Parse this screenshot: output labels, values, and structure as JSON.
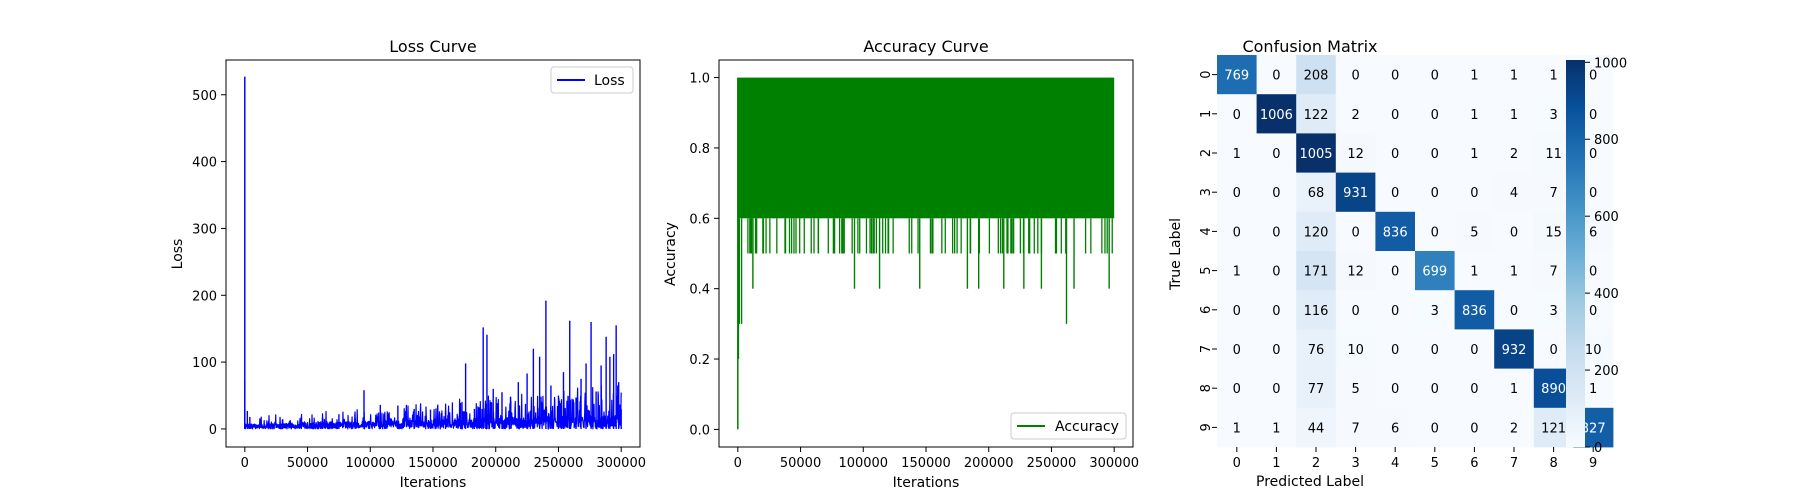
{
  "chart_data": [
    {
      "type": "line",
      "title": "Loss Curve",
      "xlabel": "Iterations",
      "ylabel": "Loss",
      "xlim": [
        -15000,
        315000
      ],
      "ylim": [
        -27,
        552
      ],
      "xticks": [
        0,
        50000,
        100000,
        150000,
        200000,
        250000,
        300000
      ],
      "xtick_labels": [
        "0",
        "50000",
        "100000",
        "150000",
        "200000",
        "250000",
        "300000"
      ],
      "yticks": [
        0,
        100,
        200,
        300,
        400,
        500
      ],
      "ytick_labels": [
        "0",
        "100",
        "200",
        "300",
        "400",
        "500"
      ],
      "legend": {
        "position": "top-right",
        "entries": [
          {
            "label": "Loss",
            "color": "#0000ff"
          }
        ]
      },
      "series": [
        {
          "name": "Loss",
          "color": "#0000ff",
          "x_range": [
            0,
            300000
          ],
          "initial_spike": {
            "x": 0,
            "y": 527
          },
          "baseline_band": [
            0,
            9
          ],
          "spikes": [
            {
              "x": 0,
              "y": 71
            },
            {
              "x": 2000,
              "y": 27
            },
            {
              "x": 4000,
              "y": 18
            },
            {
              "x": 30000,
              "y": 14
            },
            {
              "x": 45000,
              "y": 18
            },
            {
              "x": 62000,
              "y": 17
            },
            {
              "x": 75000,
              "y": 22
            },
            {
              "x": 88000,
              "y": 16
            },
            {
              "x": 95000,
              "y": 58
            },
            {
              "x": 108000,
              "y": 36
            },
            {
              "x": 122000,
              "y": 35
            },
            {
              "x": 135000,
              "y": 30
            },
            {
              "x": 148000,
              "y": 29
            },
            {
              "x": 160000,
              "y": 27
            },
            {
              "x": 172000,
              "y": 39
            },
            {
              "x": 176000,
              "y": 98
            },
            {
              "x": 183000,
              "y": 30
            },
            {
              "x": 190000,
              "y": 152
            },
            {
              "x": 193000,
              "y": 141
            },
            {
              "x": 198000,
              "y": 60
            },
            {
              "x": 205000,
              "y": 55
            },
            {
              "x": 212000,
              "y": 42
            },
            {
              "x": 218000,
              "y": 70
            },
            {
              "x": 225000,
              "y": 83
            },
            {
              "x": 230000,
              "y": 120
            },
            {
              "x": 235000,
              "y": 108
            },
            {
              "x": 240000,
              "y": 192
            },
            {
              "x": 244000,
              "y": 65
            },
            {
              "x": 250000,
              "y": 50
            },
            {
              "x": 254000,
              "y": 85
            },
            {
              "x": 259000,
              "y": 162
            },
            {
              "x": 264000,
              "y": 47
            },
            {
              "x": 268000,
              "y": 75
            },
            {
              "x": 272000,
              "y": 98
            },
            {
              "x": 276000,
              "y": 160
            },
            {
              "x": 280000,
              "y": 56
            },
            {
              "x": 284000,
              "y": 95
            },
            {
              "x": 288000,
              "y": 138
            },
            {
              "x": 291000,
              "y": 108
            },
            {
              "x": 294000,
              "y": 112
            },
            {
              "x": 296000,
              "y": 155
            },
            {
              "x": 298000,
              "y": 70
            },
            {
              "x": 300000,
              "y": 30
            }
          ]
        }
      ]
    },
    {
      "type": "line",
      "title": "Accuracy Curve",
      "xlabel": "Iterations",
      "ylabel": "Accuracy",
      "xlim": [
        -15000,
        315000
      ],
      "ylim": [
        -0.05,
        1.05
      ],
      "xticks": [
        0,
        50000,
        100000,
        150000,
        200000,
        250000,
        300000
      ],
      "xtick_labels": [
        "0",
        "50000",
        "100000",
        "150000",
        "200000",
        "250000",
        "300000"
      ],
      "yticks": [
        0,
        0.2,
        0.4,
        0.6,
        0.8,
        1.0
      ],
      "ytick_labels": [
        "0.0",
        "0.2",
        "0.4",
        "0.6",
        "0.8",
        "1.0"
      ],
      "legend": {
        "position": "bottom-right",
        "entries": [
          {
            "label": "Accuracy",
            "color": "#008000"
          }
        ]
      },
      "series": [
        {
          "name": "Accuracy",
          "color": "#008000",
          "x_range": [
            0,
            300000
          ],
          "start_value": 0.0,
          "upper_value": 1.0,
          "dense_band": [
            0.6,
            1.0
          ],
          "occasional_values": [
            0.5,
            0.4,
            0.3,
            0.7
          ],
          "dips": [
            {
              "x": 500,
              "y": 0.2
            },
            {
              "x": 1200,
              "y": 0.3
            },
            {
              "x": 3000,
              "y": 0.3
            },
            {
              "x": 12000,
              "y": 0.4
            },
            {
              "x": 20000,
              "y": 0.5
            },
            {
              "x": 29000,
              "y": 0.7
            },
            {
              "x": 50000,
              "y": 0.7
            },
            {
              "x": 93000,
              "y": 0.4
            },
            {
              "x": 113000,
              "y": 0.4
            },
            {
              "x": 145000,
              "y": 0.4
            },
            {
              "x": 180000,
              "y": 0.7
            },
            {
              "x": 183000,
              "y": 0.4
            },
            {
              "x": 192000,
              "y": 0.4
            },
            {
              "x": 212000,
              "y": 0.4
            },
            {
              "x": 228000,
              "y": 0.4
            },
            {
              "x": 242000,
              "y": 0.4
            },
            {
              "x": 262000,
              "y": 0.3
            },
            {
              "x": 268000,
              "y": 0.4
            },
            {
              "x": 296000,
              "y": 0.4
            }
          ]
        }
      ]
    },
    {
      "type": "heatmap",
      "title": "Confusion Matrix",
      "xlabel": "Predicted Label",
      "ylabel": "True Label",
      "x_categories": [
        "0",
        "1",
        "2",
        "3",
        "4",
        "5",
        "6",
        "7",
        "8",
        "9"
      ],
      "y_categories": [
        "0",
        "1",
        "2",
        "3",
        "4",
        "5",
        "6",
        "7",
        "8",
        "9"
      ],
      "colormap": "Blues",
      "colorbar": {
        "range": [
          0,
          1006
        ],
        "ticks": [
          0,
          200,
          400,
          600,
          800,
          1000
        ],
        "tick_labels": [
          "0",
          "200",
          "400",
          "600",
          "800",
          "1000"
        ]
      },
      "matrix": [
        [
          769,
          0,
          208,
          0,
          0,
          0,
          1,
          1,
          1,
          0
        ],
        [
          0,
          1006,
          122,
          2,
          0,
          0,
          1,
          1,
          3,
          0
        ],
        [
          1,
          0,
          1005,
          12,
          0,
          0,
          1,
          2,
          11,
          0
        ],
        [
          0,
          0,
          68,
          931,
          0,
          0,
          0,
          4,
          7,
          0
        ],
        [
          0,
          0,
          120,
          0,
          836,
          0,
          5,
          0,
          15,
          6
        ],
        [
          1,
          0,
          171,
          12,
          0,
          699,
          1,
          1,
          7,
          0
        ],
        [
          0,
          0,
          116,
          0,
          0,
          3,
          836,
          0,
          3,
          0
        ],
        [
          0,
          0,
          76,
          10,
          0,
          0,
          0,
          932,
          0,
          10
        ],
        [
          0,
          0,
          77,
          5,
          0,
          0,
          0,
          1,
          890,
          1
        ],
        [
          1,
          1,
          44,
          7,
          6,
          0,
          0,
          2,
          121,
          827
        ]
      ]
    }
  ]
}
